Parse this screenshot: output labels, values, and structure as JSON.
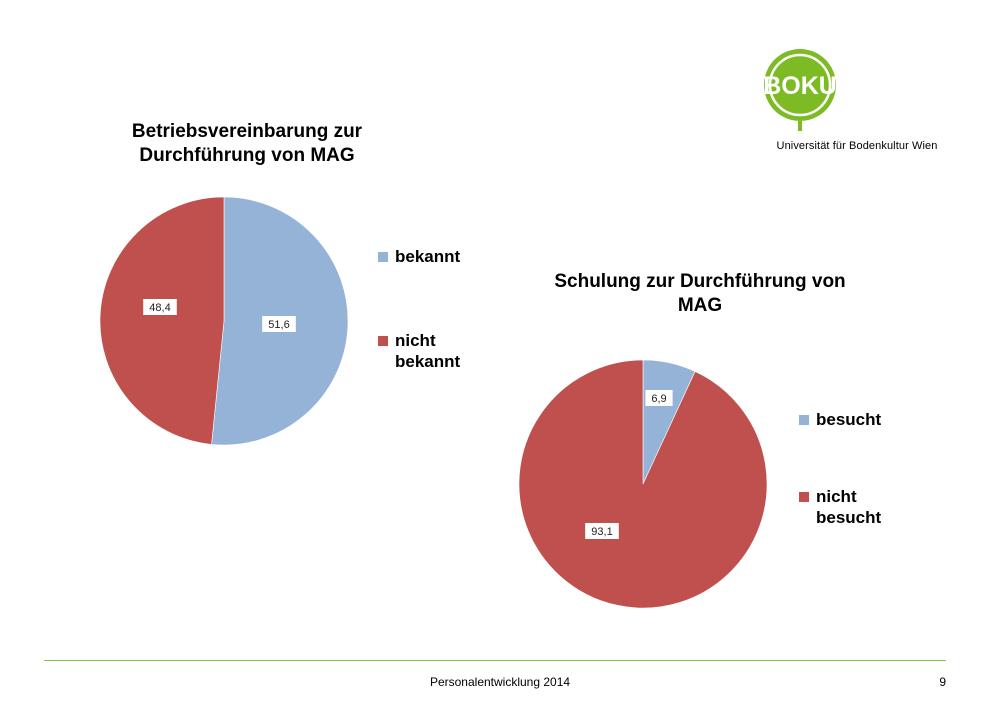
{
  "logo": {
    "mark_text": "BOKU",
    "caption": "Universität für Bodenkultur Wien",
    "color": "#7dbb24"
  },
  "footer": {
    "text": "Personalentwicklung 2014",
    "page_number": "9",
    "rule_color": "#8bc34a"
  },
  "colors": {
    "blue": "#95b3d7",
    "red": "#c0504d"
  },
  "chart_data": [
    {
      "type": "pie",
      "title": "Betriebsvereinbarung zur Durchführung von MAG",
      "categories": [
        "bekannt",
        "nicht bekannt"
      ],
      "legend_labels": [
        "bekannt",
        "nicht\nbekannt"
      ],
      "values": [
        51.6,
        48.4
      ],
      "value_labels": [
        "51,6",
        "48,4"
      ],
      "colors": [
        "#95b3d7",
        "#c0504d"
      ],
      "legend": "right"
    },
    {
      "type": "pie",
      "title": "Schulung zur Durchführung von MAG",
      "categories": [
        "besucht",
        "nicht besucht"
      ],
      "legend_labels": [
        "besucht",
        "nicht\nbesucht"
      ],
      "values": [
        6.9,
        93.1
      ],
      "value_labels": [
        "6,9",
        "93,1"
      ],
      "colors": [
        "#95b3d7",
        "#c0504d"
      ],
      "legend": "right"
    }
  ]
}
